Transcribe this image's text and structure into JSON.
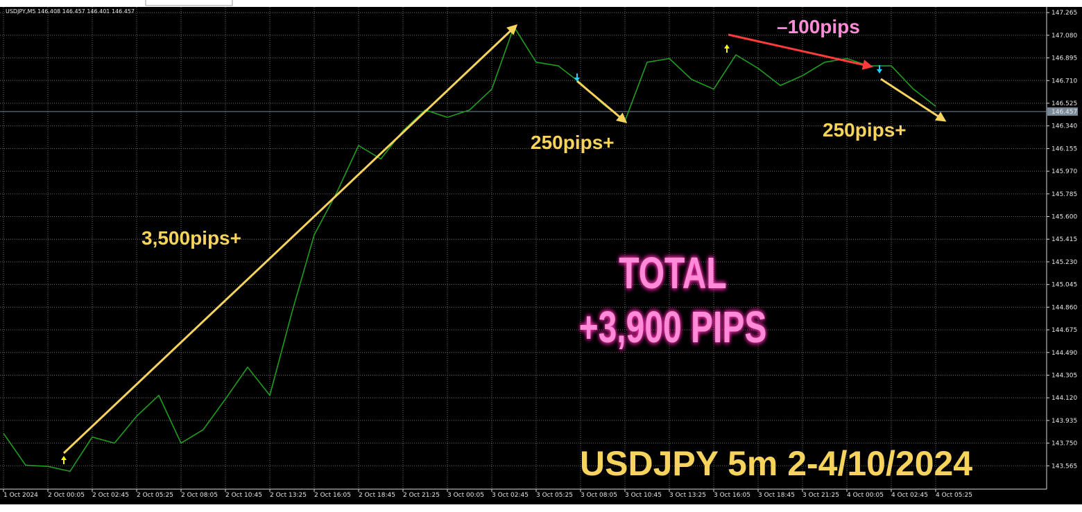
{
  "chart_data": {
    "type": "line",
    "header": "USDJPY,M5  146.408 146.457 146.401 146.457",
    "categories": [
      "1 Oct 2024",
      null,
      "2 Oct 00:05",
      null,
      "2 Oct 02:45",
      null,
      "2 Oct 05:25",
      null,
      "2 Oct 08:05",
      null,
      "2 Oct 10:45",
      null,
      "2 Oct 13:25",
      null,
      "2 Oct 16:05",
      null,
      "2 Oct 18:45",
      null,
      "2 Oct 21:25",
      null,
      "3 Oct 00:05",
      null,
      "3 Oct 02:45",
      null,
      "3 Oct 05:25",
      null,
      "3 Oct 08:05",
      null,
      "3 Oct 10:45",
      null,
      "3 Oct 13:25",
      null,
      "3 Oct 16:05",
      null,
      "3 Oct 18:45",
      null,
      "3 Oct 21:25",
      null,
      "4 Oct 00:05",
      null,
      "4 Oct 02:45",
      null,
      "4 Oct 05:25"
    ],
    "values": [
      143.83,
      143.57,
      143.56,
      143.52,
      143.8,
      143.75,
      143.97,
      144.14,
      143.75,
      143.86,
      144.11,
      144.37,
      144.14,
      144.82,
      145.45,
      145.79,
      146.18,
      146.07,
      146.3,
      146.47,
      146.41,
      146.47,
      146.64,
      147.15,
      146.86,
      146.83,
      146.69,
      146.52,
      146.38,
      146.86,
      146.89,
      146.72,
      146.64,
      146.92,
      146.81,
      146.67,
      146.75,
      146.86,
      146.89,
      146.83,
      146.83,
      146.64,
      146.5
    ],
    "color": "#1f9e1f",
    "ylim": [
      143.38,
      147.3
    ],
    "yticks": [
      147.265,
      {
        "value": 147.08,
        "label": "147.080"
      },
      146.895,
      {
        "value": 146.71,
        "label": "146.710"
      },
      146.525,
      {
        "value": 146.34,
        "label": "146.340"
      },
      146.155,
      {
        "value": 145.97,
        "label": "145.970"
      },
      145.785,
      {
        "value": 145.6,
        "label": "145.600"
      },
      145.415,
      {
        "value": 145.23,
        "label": "145.230"
      },
      145.045,
      {
        "value": 144.86,
        "label": "144.860"
      },
      144.675,
      {
        "value": 144.49,
        "label": "144.490"
      },
      144.305,
      {
        "value": 144.12,
        "label": "144.120"
      },
      143.935,
      {
        "value": 143.75,
        "label": "143.750"
      },
      143.565
    ],
    "current_price": 146.457,
    "grid": true,
    "annotations": {
      "long1": "3,500pips+",
      "short1": "250pips+",
      "loss": "–100pips",
      "short2": "250pips+",
      "total1": "TOTAL",
      "total2": "+3,900 PIPS",
      "caption": "USDJPY 5m 2-4/10/2024"
    }
  }
}
